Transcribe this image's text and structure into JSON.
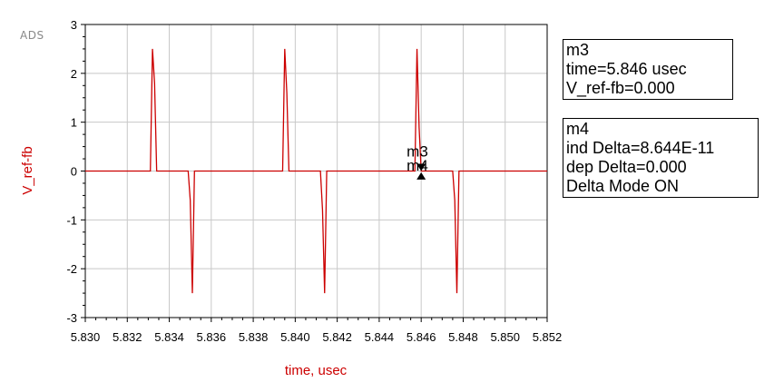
{
  "logo": "ADS",
  "colors": {
    "trace": "#cc0000",
    "grid": "#c8c8c8",
    "axis": "#000000"
  },
  "chart_data": {
    "type": "line",
    "xlabel": "time, usec",
    "ylabel": "V_ref-fb",
    "xlim": [
      5.83,
      5.852
    ],
    "ylim": [
      -3,
      3
    ],
    "xticks": [
      "5.830",
      "5.832",
      "5.834",
      "5.836",
      "5.838",
      "5.840",
      "5.842",
      "5.844",
      "5.846",
      "5.848",
      "5.850",
      "5.852"
    ],
    "yticks": [
      "3",
      "2",
      "1",
      "0",
      "-1",
      "-2",
      "-3"
    ],
    "grid": true,
    "series": [
      {
        "x": [
          5.83,
          5.8331,
          5.8332,
          5.8332,
          5.8333,
          5.8333,
          5.8334,
          5.8349,
          5.835,
          5.835,
          5.8351,
          5.8351,
          5.8352,
          5.8394,
          5.8395,
          5.8395,
          5.8396,
          5.8396,
          5.8397,
          5.8412,
          5.8413,
          5.8413,
          5.8414,
          5.8414,
          5.8415,
          5.8457,
          5.8458,
          5.8458,
          5.8459,
          5.8459,
          5.846,
          5.8475,
          5.8476,
          5.8476,
          5.8477,
          5.8477,
          5.8478,
          5.852
        ],
        "y": [
          0,
          0,
          2.5,
          2.5,
          1.8,
          1.8,
          0,
          0,
          -0.6,
          -0.6,
          -2.5,
          -2.5,
          0,
          0,
          2.5,
          2.5,
          1.6,
          1.6,
          0,
          0,
          -0.8,
          -0.8,
          -2.5,
          -2.5,
          0,
          0,
          2.5,
          2.5,
          0.9,
          0.9,
          0,
          0,
          -0.6,
          -0.6,
          -2.5,
          -2.5,
          0,
          0
        ]
      }
    ],
    "markers": [
      {
        "name": "m3",
        "x": 5.846,
        "y": 0.0
      },
      {
        "name": "m4",
        "x": 5.846,
        "y": -0.1
      }
    ]
  },
  "marker_boxes": {
    "m3": {
      "line1": "m3",
      "line2": "time=5.846 usec",
      "line3": "V_ref-fb=0.000"
    },
    "m4": {
      "line1": "m4",
      "line2": "ind Delta=8.644E-11",
      "line3": "dep Delta=0.000",
      "line4": "Delta Mode ON"
    }
  }
}
